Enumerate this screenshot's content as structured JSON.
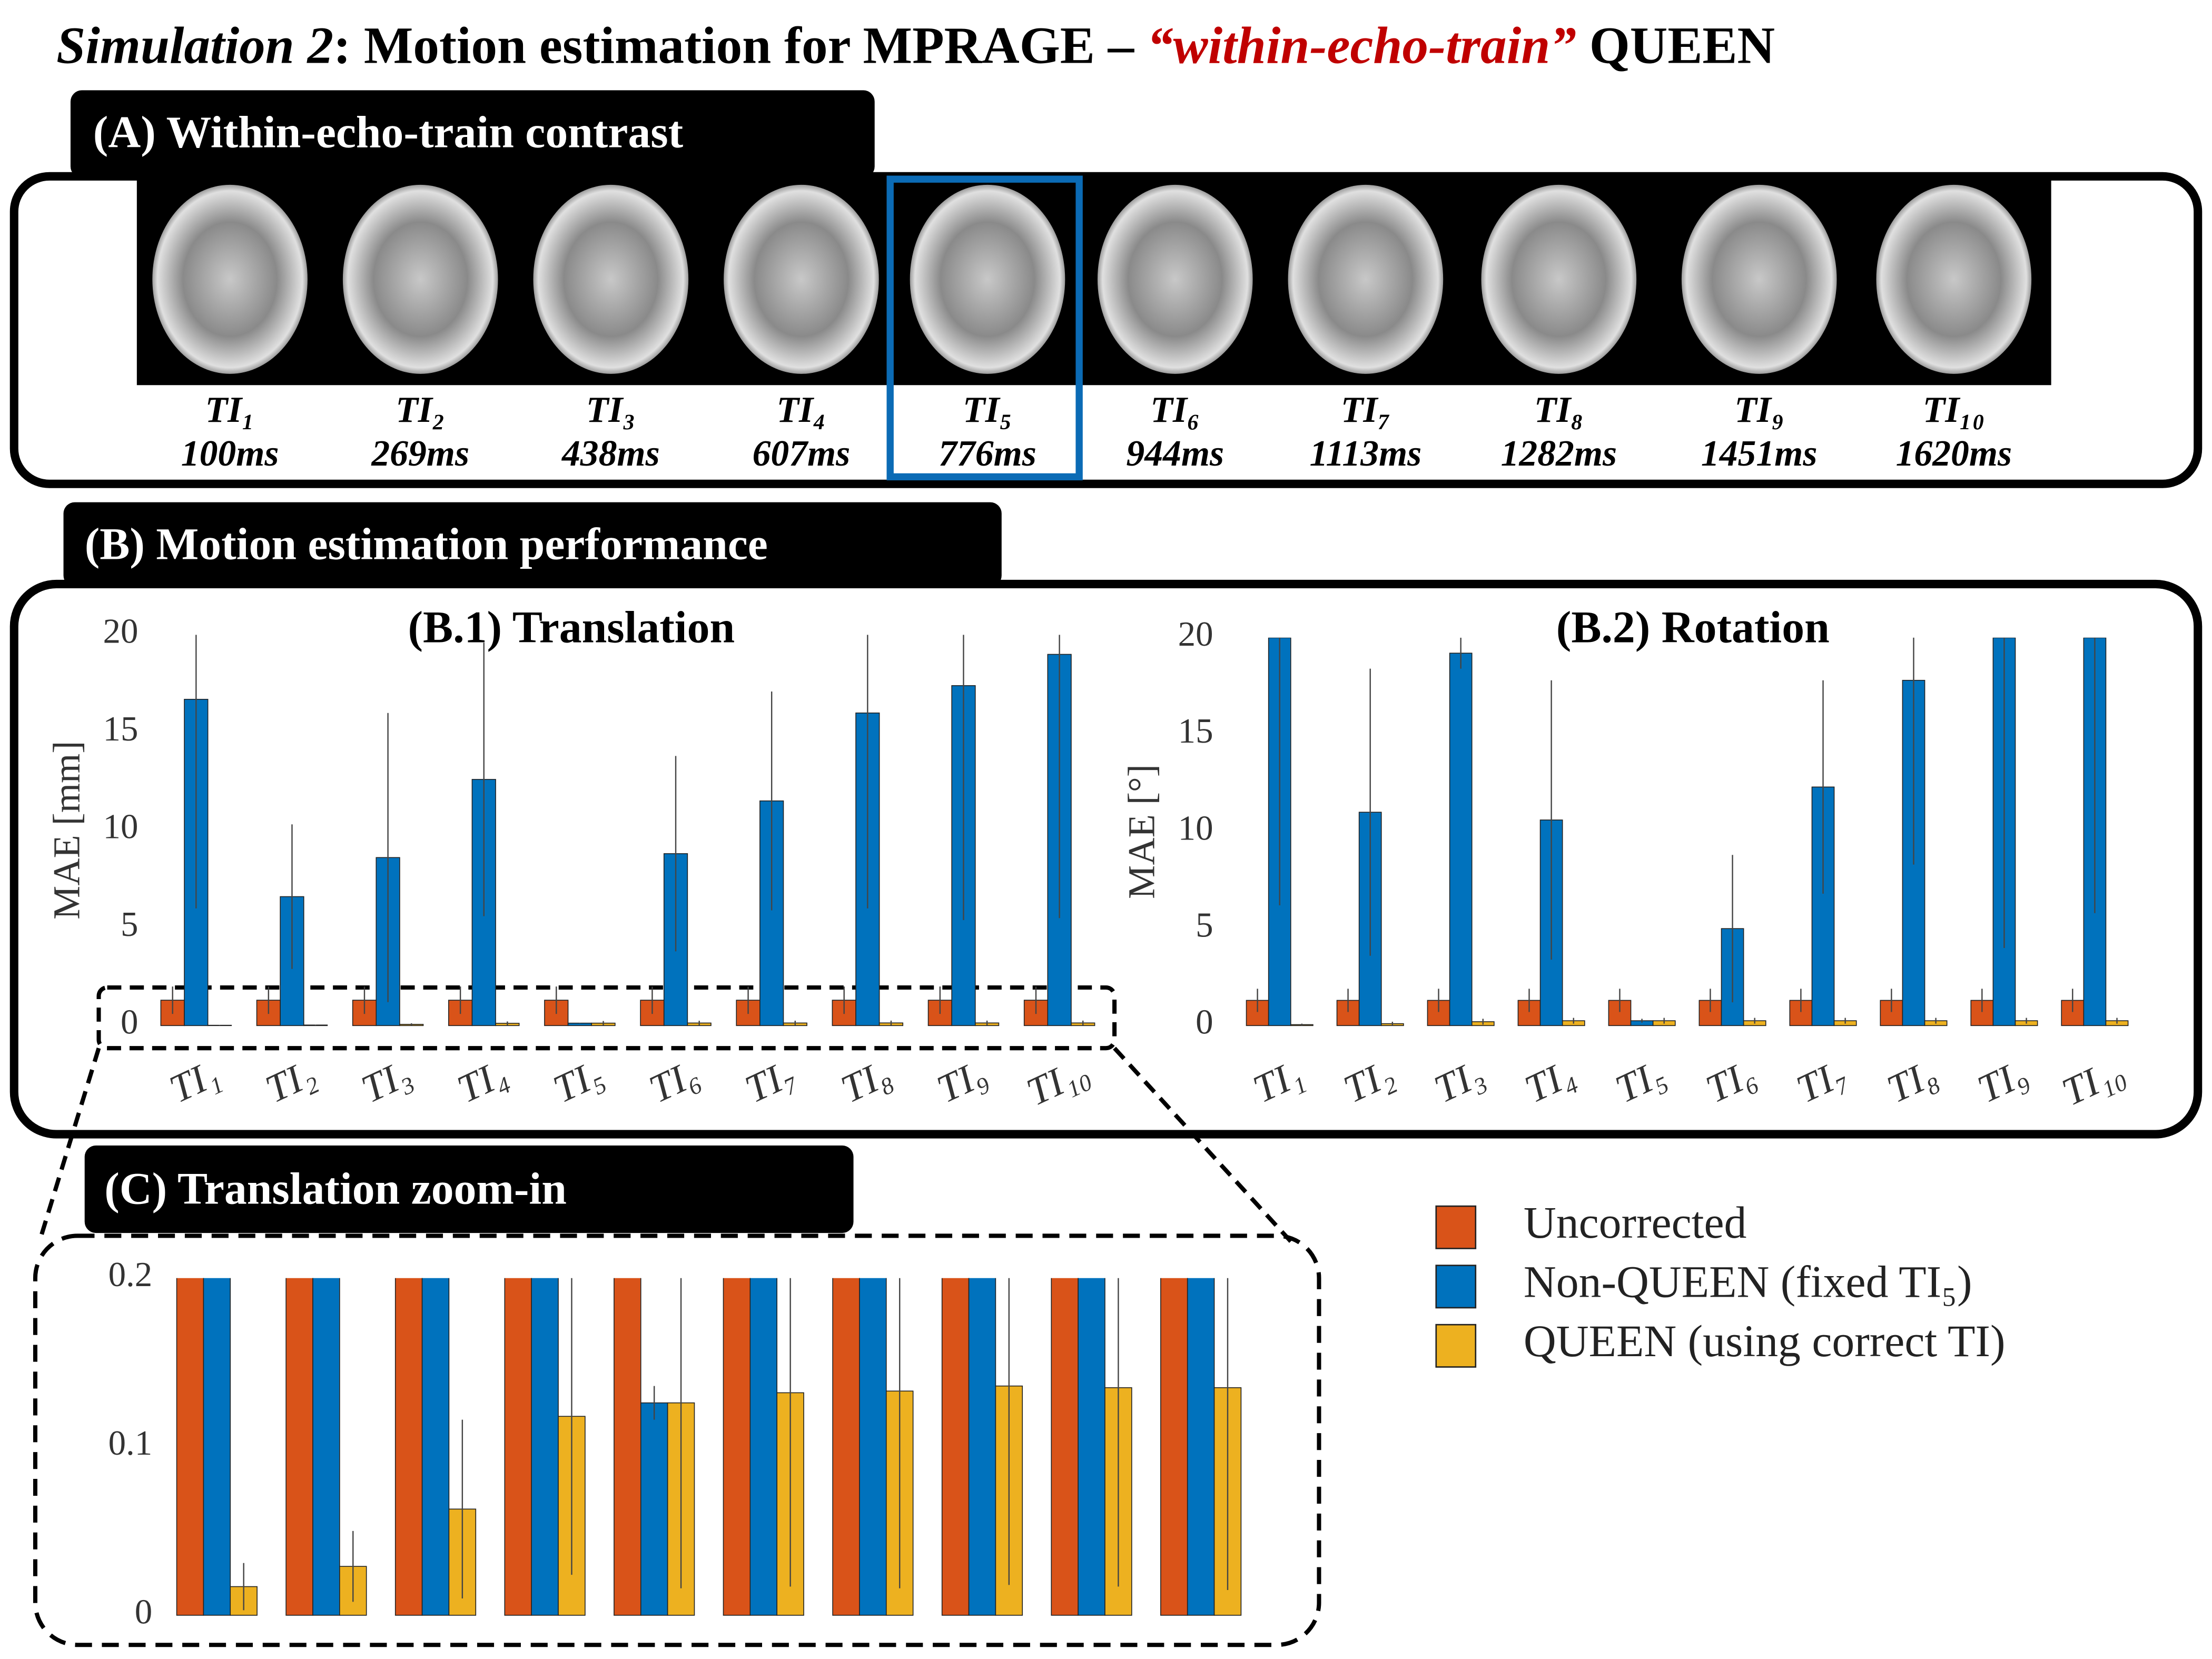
{
  "title": {
    "parts": [
      "Simulation 2",
      ": Motion estimation for MPRAGE – ",
      "“within-echo-train”",
      " QUEEN"
    ]
  },
  "panel_a": {
    "label": "(A) Within-echo-train contrast",
    "images": [
      {
        "ti": "TI₁",
        "time": "100ms"
      },
      {
        "ti": "TI₂",
        "time": "269ms"
      },
      {
        "ti": "TI₃",
        "time": "438ms"
      },
      {
        "ti": "TI₄",
        "time": "607ms"
      },
      {
        "ti": "TI₅",
        "time": "776ms"
      },
      {
        "ti": "TI₆",
        "time": "944ms"
      },
      {
        "ti": "TI₇",
        "time": "1113ms"
      },
      {
        "ti": "TI₈",
        "time": "1282ms"
      },
      {
        "ti": "TI₉",
        "time": "1451ms"
      },
      {
        "ti": "TI₁₀",
        "time": "1620ms"
      }
    ]
  },
  "panel_b": {
    "label": "(B) Motion estimation performance"
  },
  "panel_c": {
    "label": "(C) Translation zoom-in"
  },
  "chart_data": [
    {
      "type": "bar",
      "title": "(B.1) Translation",
      "ylabel": "MAE [mm]",
      "categories": [
        "TI₁",
        "TI₂",
        "TI₃",
        "TI₄",
        "TI₅",
        "TI₆",
        "TI₇",
        "TI₈",
        "TI₉",
        "TI₁₀"
      ],
      "series": [
        {
          "name": "Uncorrected",
          "color": "#d95319",
          "values": [
            1.3,
            1.3,
            1.3,
            1.3,
            1.3,
            1.3,
            1.3,
            1.3,
            1.3,
            1.3
          ],
          "errors": [
            0.7,
            0.7,
            0.7,
            0.7,
            0.7,
            0.7,
            0.7,
            0.7,
            0.7,
            0.7
          ]
        },
        {
          "name": "Non-QUEEN (fixed TI₅)",
          "color": "#0072bd",
          "values": [
            16.7,
            6.6,
            8.6,
            12.6,
            0.126,
            8.8,
            11.5,
            16.0,
            17.4,
            19.0
          ],
          "errors": [
            10.7,
            3.7,
            7.4,
            7.0,
            0.01,
            5.0,
            5.6,
            10.0,
            12.0,
            13.5
          ]
        },
        {
          "name": "QUEEN (using correct TI)",
          "color": "#edb120",
          "values": [
            0.017,
            0.029,
            0.063,
            0.118,
            0.126,
            0.132,
            0.133,
            0.136,
            0.135,
            0.135
          ],
          "errors": [
            0.014,
            0.021,
            0.053,
            0.094,
            0.11,
            0.115,
            0.117,
            0.118,
            0.118,
            0.12
          ]
        }
      ],
      "ylim": [
        0,
        20
      ],
      "yticks": [
        0,
        5,
        10,
        15,
        20
      ]
    },
    {
      "type": "bar",
      "title": "(B.2) Rotation",
      "ylabel": "MAE [°]",
      "categories": [
        "TI₁",
        "TI₂",
        "TI₃",
        "TI₄",
        "TI₅",
        "TI₆",
        "TI₇",
        "TI₈",
        "TI₉",
        "TI₁₀"
      ],
      "series": [
        {
          "color": "#d95319",
          "values": [
            1.3,
            1.3,
            1.3,
            1.3,
            1.3,
            1.3,
            1.3,
            1.3,
            1.3,
            1.3
          ],
          "errors": [
            0.6,
            0.6,
            0.6,
            0.6,
            0.6,
            0.6,
            0.6,
            0.6,
            0.6,
            0.6
          ]
        },
        {
          "color": "#0072bd",
          "values": [
            20,
            11.0,
            19.2,
            10.6,
            0.25,
            5.0,
            12.3,
            17.8,
            20,
            20
          ],
          "errors": [
            13.8,
            7.4,
            0.8,
            7.2,
            0.1,
            3.8,
            5.5,
            9.5,
            16.0,
            14.2
          ]
        },
        {
          "color": "#edb120",
          "values": [
            0.05,
            0.1,
            0.2,
            0.25,
            0.25,
            0.25,
            0.25,
            0.25,
            0.25,
            0.25
          ],
          "errors": [
            0.05,
            0.1,
            0.15,
            0.15,
            0.15,
            0.15,
            0.15,
            0.15,
            0.15,
            0.15
          ]
        }
      ],
      "ylim": [
        0,
        20
      ],
      "yticks": [
        0,
        5,
        10,
        15,
        20
      ]
    },
    {
      "type": "bar",
      "series": [
        {
          "color": "#d95319",
          "values": [
            1.3,
            1.3,
            1.3,
            1.3,
            1.3,
            1.3,
            1.3,
            1.3,
            1.3,
            1.3
          ],
          "errors": [
            0.7,
            0.7,
            0.7,
            0.7,
            0.7,
            0.7,
            0.7,
            0.7,
            0.7,
            0.7
          ]
        },
        {
          "color": "#0072bd",
          "values": [
            16.7,
            6.6,
            8.6,
            12.6,
            0.126,
            8.8,
            11.5,
            16.0,
            17.4,
            19.0
          ],
          "errors": [
            10.7,
            3.7,
            7.4,
            7.0,
            0.01,
            5.0,
            5.6,
            10.0,
            12.0,
            13.5
          ]
        },
        {
          "color": "#edb120",
          "values": [
            0.017,
            0.029,
            0.063,
            0.118,
            0.126,
            0.132,
            0.133,
            0.136,
            0.135,
            0.135
          ],
          "errors": [
            0.014,
            0.021,
            0.053,
            0.094,
            0.11,
            0.115,
            0.117,
            0.118,
            0.118,
            0.12
          ]
        }
      ],
      "ylim": [
        0,
        0.2
      ],
      "yticks": [
        0,
        0.1,
        0.2
      ]
    }
  ]
}
